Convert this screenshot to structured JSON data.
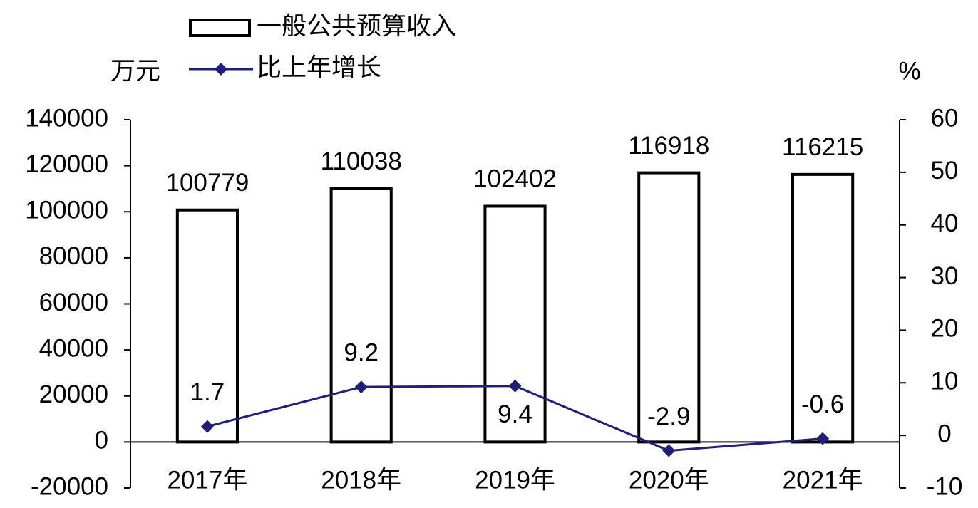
{
  "chart_data": {
    "type": "bar",
    "y_label": "万元",
    "y2_label": "%",
    "categories": [
      "2017年",
      "2018年",
      "2019年",
      "2020年",
      "2021年"
    ],
    "series": [
      {
        "name": "一般公共预算收入",
        "type": "bar",
        "color": "#ffffff",
        "values": [
          100779,
          110038,
          102402,
          116918,
          116215
        ]
      },
      {
        "name": "比上年增长",
        "type": "line",
        "axis": "y2",
        "color": "#1f1f7a",
        "values": [
          1.7,
          9.2,
          9.4,
          -2.9,
          -0.6
        ]
      }
    ],
    "ylim": [
      -20000,
      140000
    ],
    "yticks": [
      -20000,
      0,
      20000,
      40000,
      60000,
      80000,
      100000,
      120000,
      140000
    ],
    "y2lim": [
      -10,
      60
    ],
    "y2ticks": [
      -10,
      0,
      10,
      20,
      30,
      40,
      50,
      60
    ],
    "legend": "top-left",
    "grid": false
  }
}
